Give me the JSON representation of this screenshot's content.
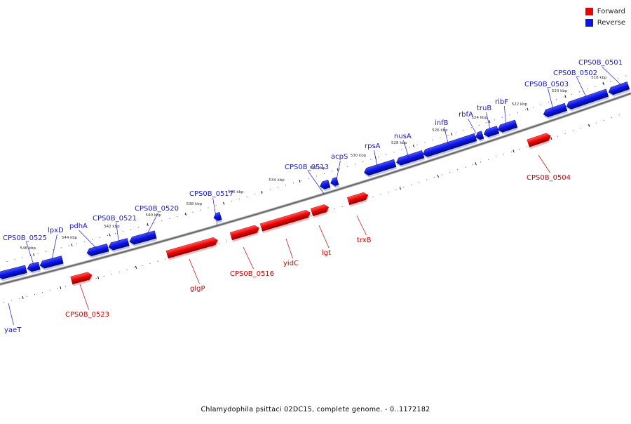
{
  "legend": {
    "items": [
      {
        "label": "Forward",
        "color": "#ee0000"
      },
      {
        "label": "Reverse",
        "color": "#0a14e6"
      }
    ]
  },
  "caption": "Chlamydophila psittaci 02DC15, complete genome. - 0..1172182",
  "colors": {
    "forward": "#ee0000",
    "reverse": "#0a14e6",
    "forward_label": "#cc0000",
    "reverse_label": "#1a1ad0",
    "backbone": "#888888"
  },
  "axis": {
    "unit": "kbp",
    "ticks": [
      546,
      544,
      542,
      540,
      538,
      536,
      534,
      532,
      530,
      528,
      526,
      524,
      522,
      520,
      518
    ]
  },
  "genes": {
    "reverse": [
      "CPS0B_0525",
      "lpxD",
      "pdhA",
      "CPS0B_0521",
      "CPS0B_0520",
      "CPS0B_0517",
      "CPS0B_0513",
      "acpS",
      "rpsA",
      "nusA",
      "infB",
      "rbfA",
      "truB",
      "ribF",
      "CPS0B_0503",
      "CPS0B_0502",
      "CPS0B_0501",
      "yaeT"
    ],
    "forward": [
      "CPS0B_0523",
      "glgP",
      "CPS0B_0516",
      "yidC",
      "lgt",
      "trxB",
      "CPS0B_0504"
    ]
  }
}
